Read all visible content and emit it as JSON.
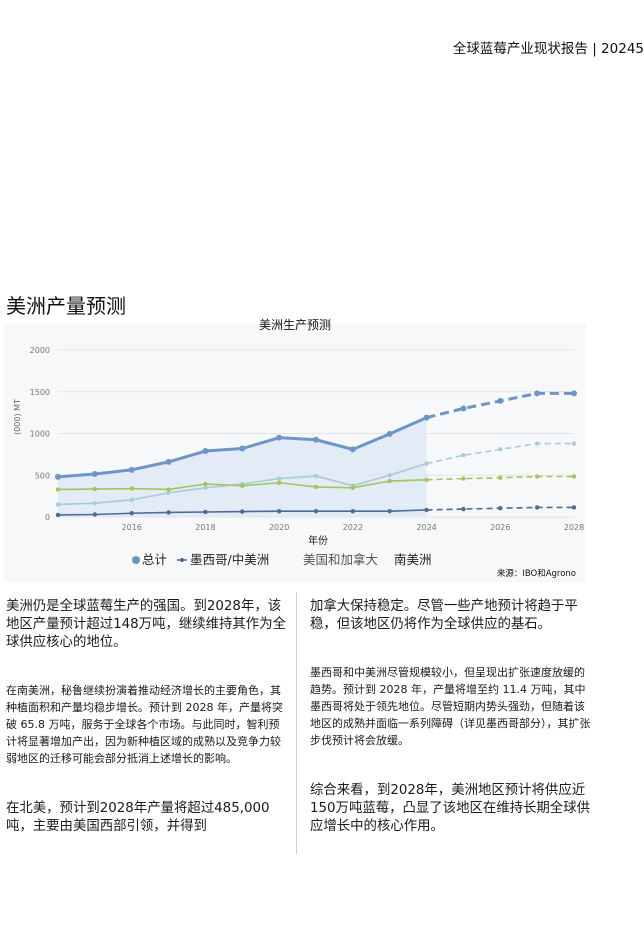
{
  "header": {
    "title": "全球蓝莓产业现状报告 | 20245"
  },
  "section": {
    "title": "美洲产量预测"
  },
  "chart_data": {
    "type": "line",
    "title": "美洲生产预测",
    "xlabel": "年份",
    "ylabel": "(000) MT",
    "x": [
      2014,
      2015,
      2016,
      2017,
      2018,
      2019,
      2020,
      2021,
      2022,
      2023,
      2024,
      2025,
      2026,
      2027,
      2028
    ],
    "x_ticks": [
      2016,
      2018,
      2020,
      2022,
      2024,
      2026,
      2028
    ],
    "y_ticks": [
      0,
      500,
      1000,
      1500,
      2000
    ],
    "ylim": [
      0,
      2000
    ],
    "forecast_start": 2024,
    "series": [
      {
        "name": "总计",
        "color": "#6e95c8",
        "values": [
          480,
          515,
          565,
          660,
          790,
          820,
          950,
          925,
          810,
          995,
          1190,
          1300,
          1390,
          1480,
          1480
        ]
      },
      {
        "name": "墨西哥/中美洲",
        "color": "#4e6a95",
        "values": [
          25,
          30,
          45,
          55,
          60,
          65,
          70,
          70,
          70,
          70,
          85,
          95,
          105,
          114,
          114
        ]
      },
      {
        "name": "美国和加拿大",
        "color": "#a5c45a",
        "values": [
          330,
          335,
          340,
          330,
          395,
          375,
          410,
          360,
          350,
          430,
          445,
          460,
          470,
          485,
          485
        ]
      },
      {
        "name": "南美洲",
        "color": "#a9ccd8",
        "values": [
          150,
          165,
          205,
          290,
          350,
          395,
          460,
          490,
          375,
          500,
          640,
          740,
          810,
          880,
          880
        ]
      }
    ],
    "source": "来源：IBO和Agrono"
  },
  "body": {
    "left": {
      "p1": "美洲仍是全球蓝莓生产的强国。到2028年，该地区产量预计超过148万吨，继续维持其作为全球供应核心的地位。",
      "p2": "在南美洲，秘鲁继续扮演着推动经济增长的主要角色，其种植面积和产量均稳步增长。预计到 2028 年，产量将突破 65.8 万吨，服务于全球各个市场。与此同时，智利预计将显著增加产出，因为新种植区域的成熟以及竞争力较弱地区的迁移可能会部分抵消上述增长的影响。",
      "p3": "在北美，预计到2028年产量将超过485,000吨，主要由美国西部引领，并得到"
    },
    "right": {
      "p1": "加拿大保持稳定。尽管一些产地预计将趋于平稳，但该地区仍将作为全球供应的基石。",
      "p2": "墨西哥和中美洲尽管规模较小，但呈现出扩张速度放缓的趋势。预计到 2028 年，产量将增至约 11.4 万吨，其中墨西哥将处于领先地位。尽管短期内势头强劲，但随着该地区的成熟并面临一系列障碍（详见墨西哥部分），其扩张步伐预计将会放缓。",
      "p3": "综合来看，到2028年，美洲地区预计将供应近150万吨蓝莓，凸显了该地区在维持长期全球供应增长中的核心作用。"
    }
  }
}
